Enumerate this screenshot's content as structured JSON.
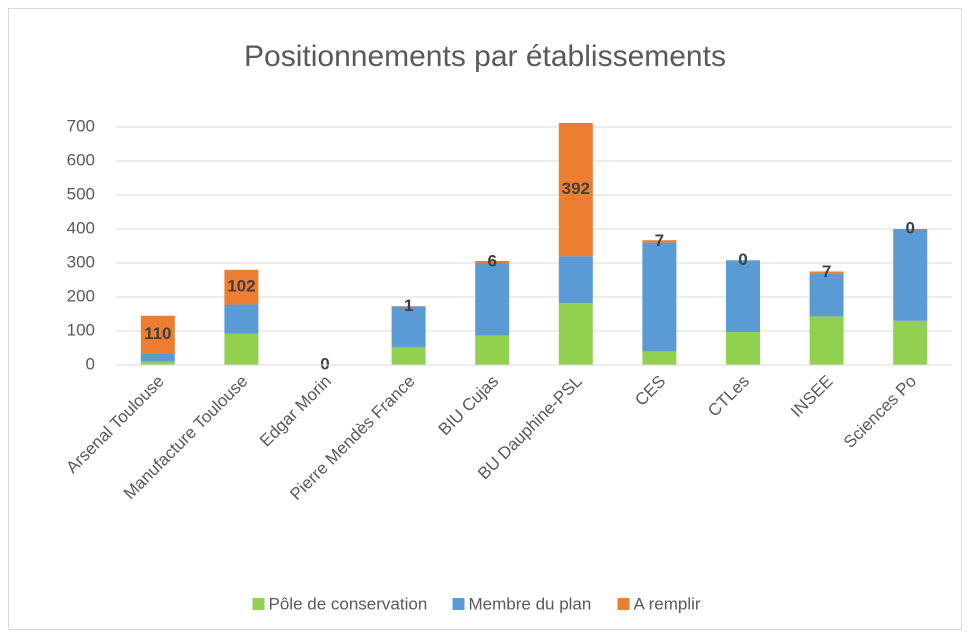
{
  "chart_data": {
    "type": "bar",
    "stacked": true,
    "title": "Positionnements par établissements",
    "categories": [
      "Arsenal Toulouse",
      "Manufacture Toulouse",
      "Edgar Morin",
      "Pierre Mendès France",
      "BIU Cujas",
      "BU Dauphine-PSL",
      "CES",
      "CTLes",
      "INSEE",
      "Sciences Po"
    ],
    "series": [
      {
        "name": "Pôle de conservation",
        "color": "#92d050",
        "values": [
          10,
          92,
          0,
          52,
          87,
          182,
          40,
          97,
          143,
          130
        ]
      },
      {
        "name": "Membre du plan",
        "color": "#5b9bd5",
        "values": [
          25,
          86,
          0,
          120,
          213,
          138,
          320,
          211,
          125,
          270
        ]
      },
      {
        "name": "A remplir",
        "color": "#ed7d31",
        "values": [
          110,
          102,
          0,
          1,
          6,
          392,
          7,
          0,
          7,
          0
        ],
        "data_labels": true
      }
    ],
    "ylim": [
      0,
      700
    ],
    "yticks": [
      0,
      100,
      200,
      300,
      400,
      500,
      600,
      700
    ],
    "grid": true,
    "legend": "bottom"
  }
}
